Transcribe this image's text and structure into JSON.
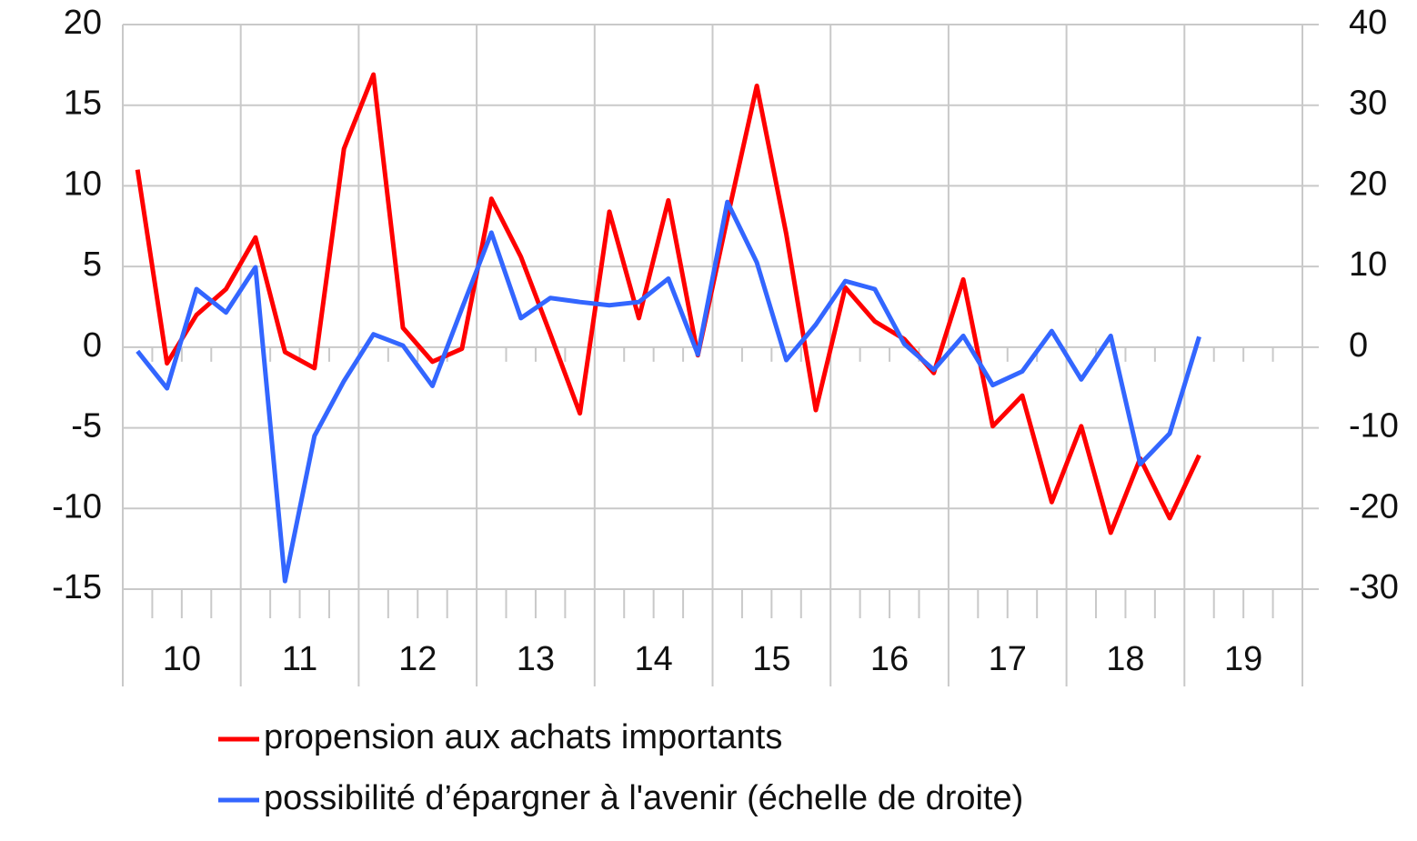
{
  "chart_data": {
    "type": "line",
    "x_labels": [
      "10",
      "11",
      "12",
      "13",
      "14",
      "15",
      "16",
      "17",
      "18",
      "19"
    ],
    "ylim": [
      -15,
      20
    ],
    "yticks": [
      -15,
      -10,
      -5,
      0,
      5,
      10,
      15,
      20
    ],
    "y2lim": [
      -30,
      40
    ],
    "y2ticks": [
      -30,
      -20,
      -10,
      0,
      10,
      20,
      30,
      40
    ],
    "grid": true,
    "legend": "bottom",
    "series": [
      {
        "name": "propension aux achats importants",
        "color": "#ff0000",
        "values": [
          11,
          -1,
          2,
          3.6,
          6.8,
          -0.3,
          -1.3,
          12.3,
          16.9,
          1.2,
          -0.9,
          -0.1,
          9.2,
          5.6,
          0.8,
          -4.1,
          8.4,
          1.8,
          9.1,
          -0.5,
          8,
          16.2,
          7,
          -3.9,
          3.7,
          1.6,
          0.5,
          -1.6,
          4.2,
          -4.9,
          -3,
          -9.6,
          -4.9,
          -11.5,
          -6.9,
          -10.6,
          -6.7
        ]
      },
      {
        "name": "possibilité d’épargner à l'avenir (échelle de droite)",
        "color": "#3366ff",
        "axis": "y2",
        "values": [
          -0.5,
          -5.1,
          7.2,
          4.3,
          9.9,
          -29,
          -11,
          -4.2,
          1.6,
          0.2,
          -4.8,
          4.8,
          14.2,
          3.6,
          6.1,
          5.6,
          5.2,
          5.6,
          8.5,
          -0.9,
          18,
          10.5,
          -1.6,
          2.8,
          8.2,
          7.2,
          0.4,
          -2.8,
          1.4,
          -4.7,
          -3,
          2,
          -4,
          1.4,
          -14.5,
          -10.7,
          1.3
        ]
      }
    ]
  }
}
